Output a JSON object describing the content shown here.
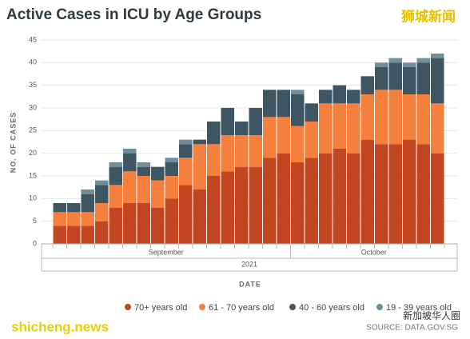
{
  "chart_data": {
    "type": "stacked_bar",
    "title": "Active Cases in ICU by Age Groups",
    "y_label": "NO. OF CASES",
    "x_label": "DATE",
    "year_label": "2021",
    "month_groups": [
      {
        "label": "September",
        "count": 17
      },
      {
        "label": "October",
        "count": 11
      }
    ],
    "categories": [
      null,
      null,
      null,
      null,
      null,
      null,
      null,
      null,
      null,
      null,
      null,
      null,
      null,
      null,
      null,
      null,
      null,
      null,
      null,
      null,
      null,
      null,
      null,
      null,
      null,
      null,
      null,
      null
    ],
    "series": [
      {
        "name": "70+ years old",
        "color": "#c2461f",
        "values": [
          4,
          4,
          4,
          5,
          8,
          9,
          9,
          8,
          10,
          13,
          12,
          15,
          16,
          17,
          17,
          19,
          20,
          18,
          19,
          20,
          21,
          20,
          23,
          22,
          22,
          23,
          22,
          20
        ]
      },
      {
        "name": "61 - 70 years old",
        "color": "#f5803e",
        "values": [
          3,
          3,
          3,
          4,
          5,
          7,
          6,
          6,
          5,
          6,
          10,
          7,
          8,
          7,
          7,
          9,
          8,
          8,
          8,
          11,
          10,
          11,
          10,
          12,
          12,
          10,
          11,
          11
        ]
      },
      {
        "name": "40 - 60 years old",
        "color": "#3e5661",
        "values": [
          2,
          2,
          4,
          4,
          4,
          4,
          2,
          3,
          3,
          3,
          1,
          5,
          6,
          3,
          6,
          6,
          6,
          7,
          4,
          3,
          4,
          3,
          4,
          5,
          6,
          6,
          7,
          10
        ]
      },
      {
        "name": "19 - 39 years old",
        "color": "#6f8e9a",
        "values": [
          0,
          0,
          1,
          1,
          1,
          1,
          1,
          0,
          1,
          1,
          0,
          0,
          0,
          0,
          0,
          0,
          0,
          1,
          0,
          0,
          0,
          0,
          0,
          1,
          1,
          1,
          1,
          1
        ]
      }
    ],
    "ylim": [
      0,
      45
    ],
    "yticks": [
      0,
      5,
      10,
      15,
      20,
      25,
      30,
      35,
      40,
      45
    ],
    "grid": true,
    "legend": "bottom",
    "source": "SOURCE: DATA.GOV.SG",
    "watermarks": [
      "狮城新闻",
      "shicheng.news",
      "新加坡华人圈"
    ]
  }
}
